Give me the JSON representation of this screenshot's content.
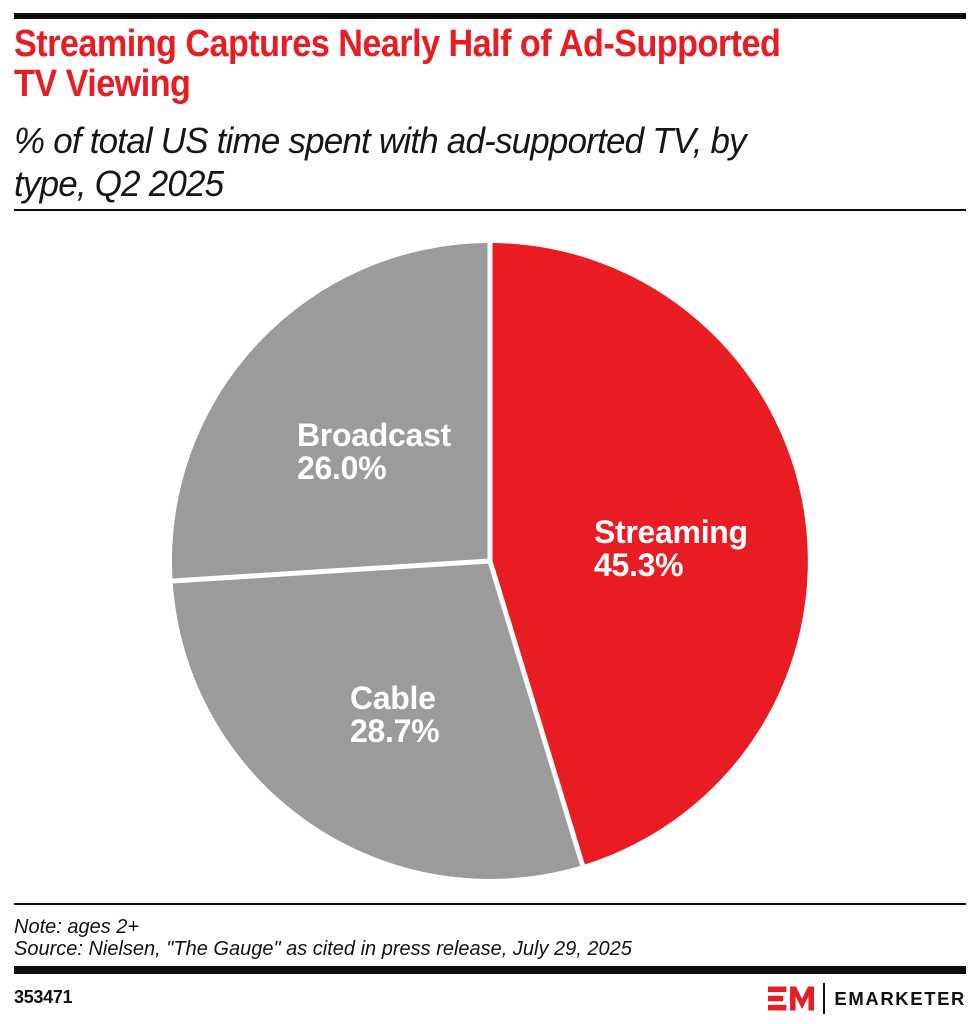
{
  "header": {
    "title": "Streaming Captures Nearly Half of Ad-Supported TV Viewing",
    "title_lines": [
      "Streaming Captures Nearly Half of Ad-Supported",
      "TV Viewing"
    ],
    "subtitle": "% of total US time spent with ad-supported TV, by type, Q2 2025",
    "subtitle_lines": [
      "% of total US time spent with ad-supported TV, by",
      "type, Q2 2025"
    ]
  },
  "chart_data": {
    "type": "pie",
    "title": "Streaming Captures Nearly Half of Ad-Supported TV Viewing",
    "subtitle": "% of total US time spent with ad-supported TV, by type, Q2 2025",
    "unit": "%",
    "start_angle_deg": 0,
    "direction": "clockwise",
    "categories": [
      "Streaming",
      "Cable",
      "Broadcast"
    ],
    "values": [
      45.3,
      28.7,
      26.0
    ],
    "slices": [
      {
        "name": "Streaming",
        "value": 45.3,
        "label": "45.3%",
        "color": "#e91c23"
      },
      {
        "name": "Cable",
        "value": 28.7,
        "label": "28.7%",
        "color": "#9b9b9b"
      },
      {
        "name": "Broadcast",
        "value": 26.0,
        "label": "26.0%",
        "color": "#9b9b9b"
      }
    ],
    "divider_color": "#ffffff",
    "label_color": "#ffffff",
    "legend": "none"
  },
  "footer": {
    "note": "Note: ages 2+",
    "source": "Source: Nielsen, \"The Gauge\" as cited in press release, July 29, 2025",
    "chart_id": "353471",
    "brand_name": "EMARKETER"
  },
  "theme": {
    "accent_red": "#e91c23",
    "slice_gray": "#9b9b9b",
    "bar_black": "#0d0d0d",
    "background": "#ffffff"
  }
}
